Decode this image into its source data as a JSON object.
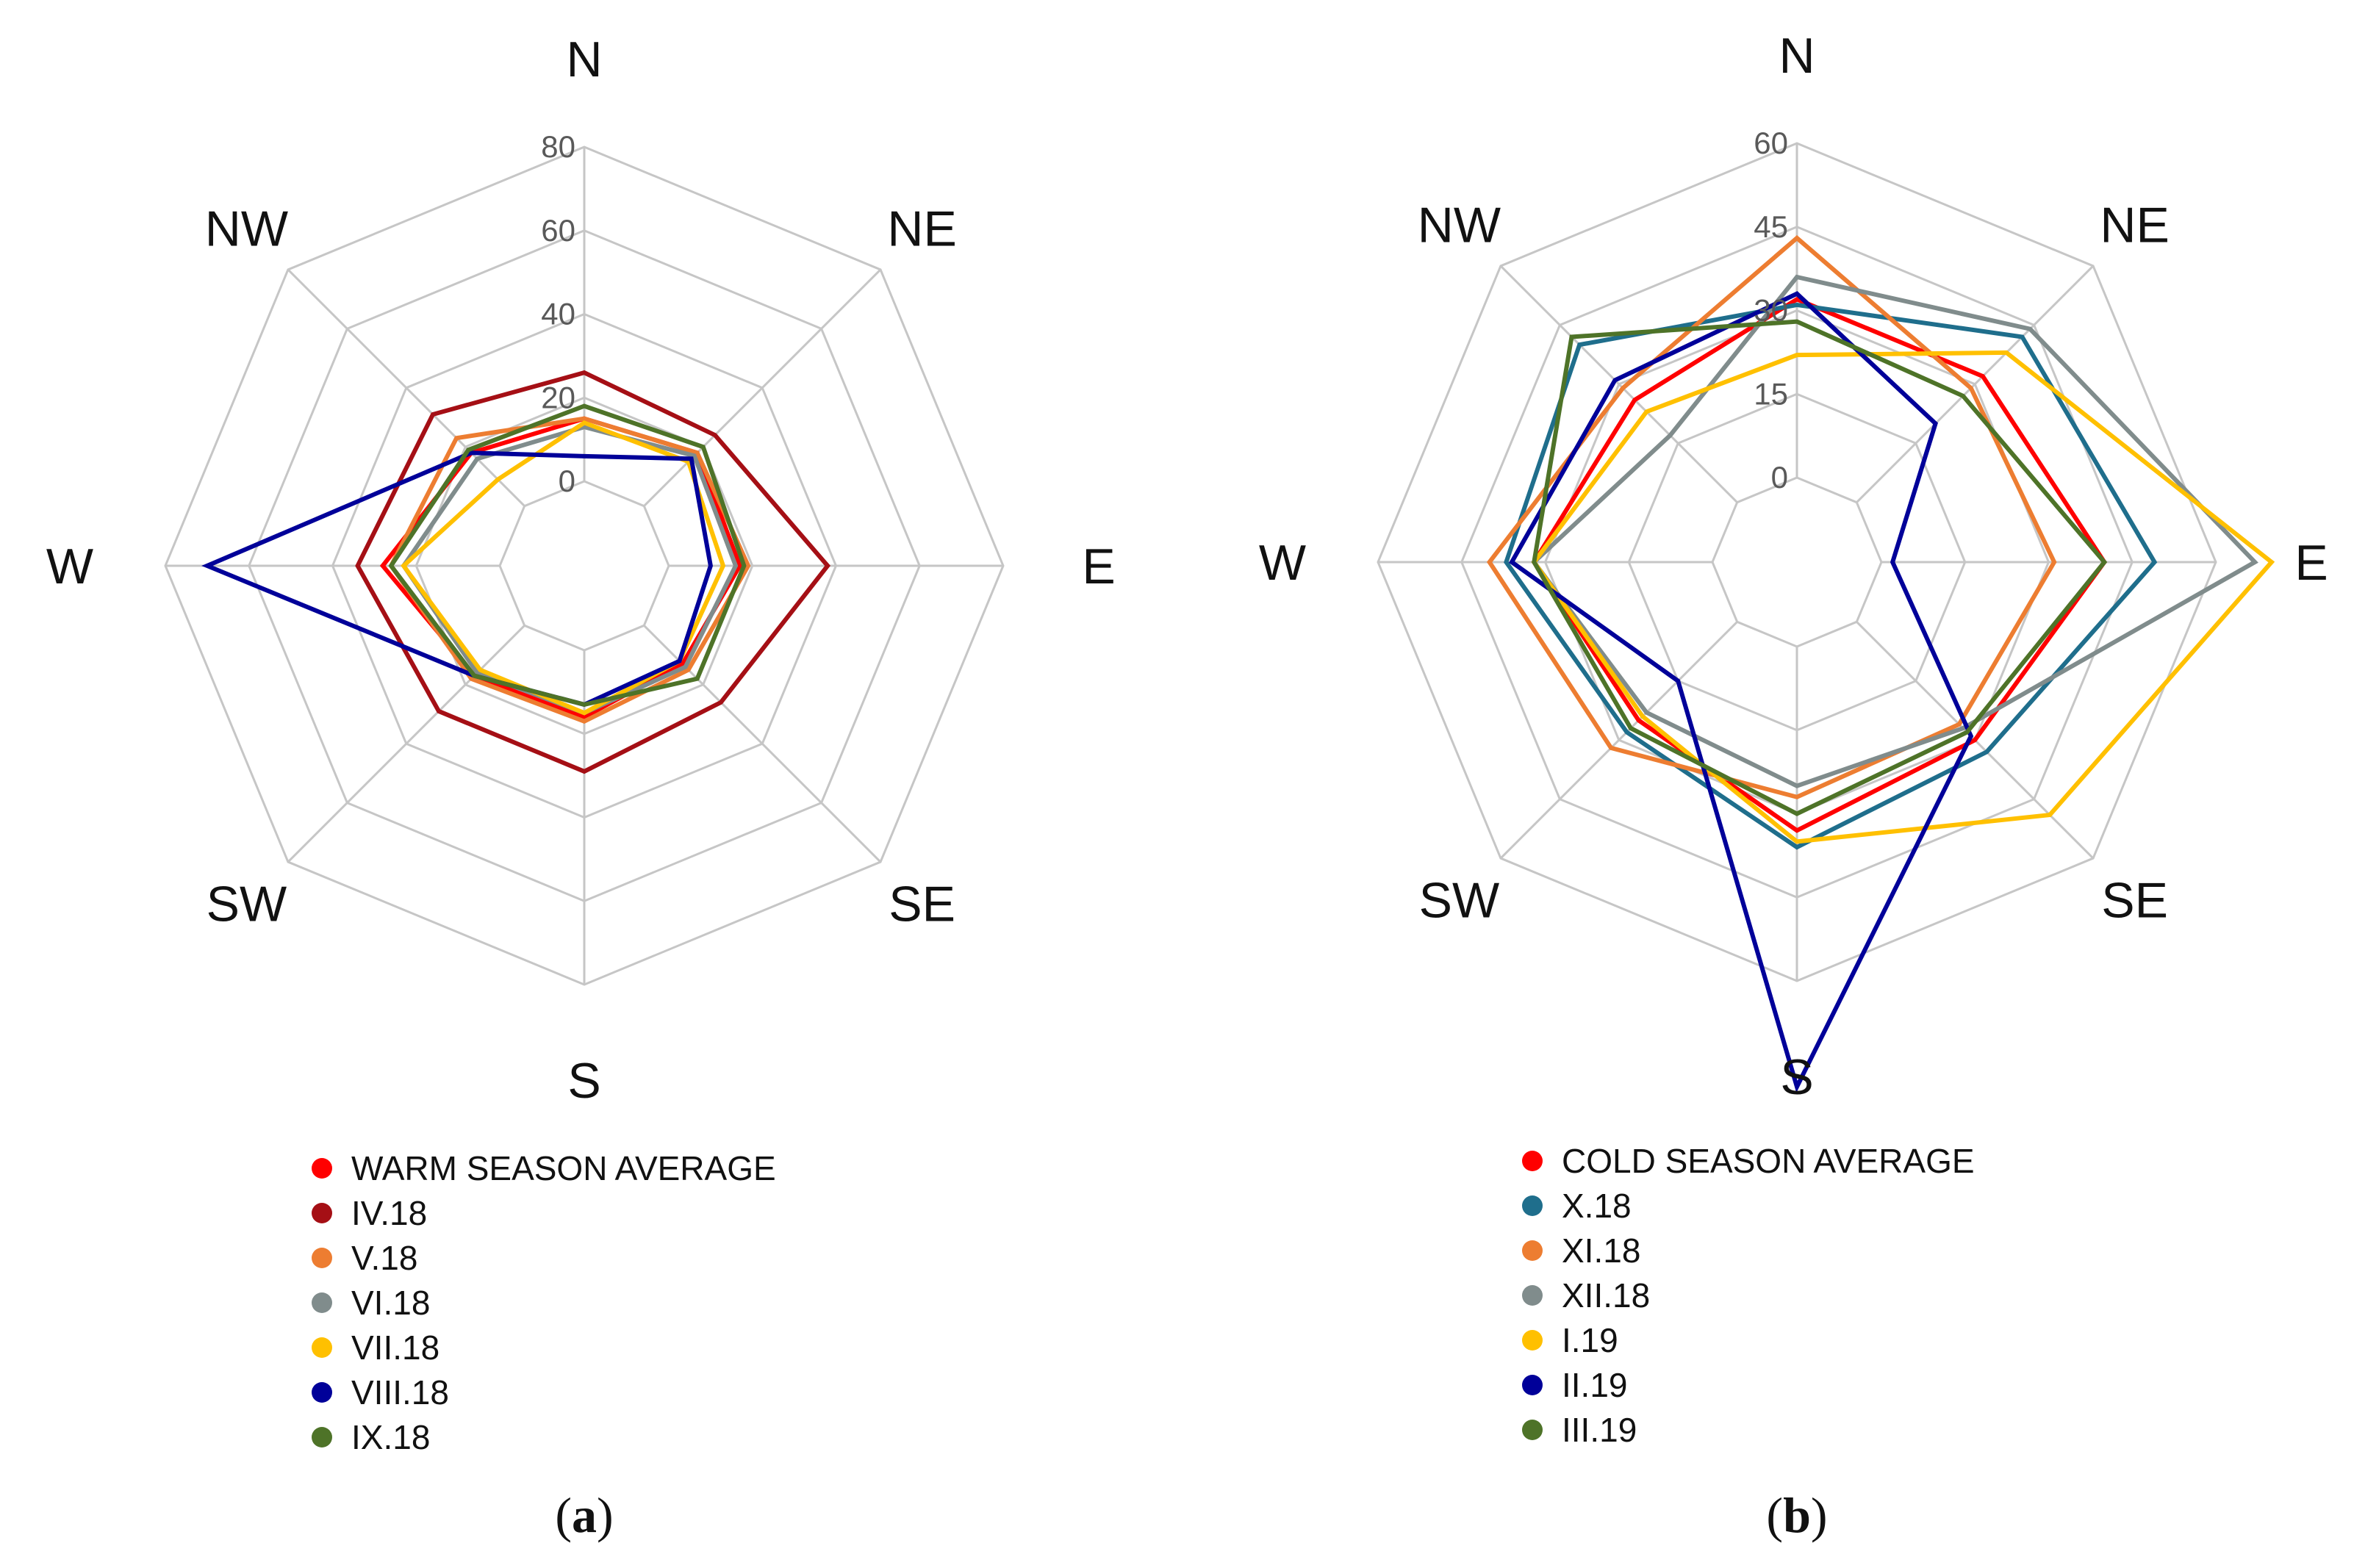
{
  "chart_data": [
    {
      "type": "radar",
      "caption_letter": "a",
      "caption_open": "(",
      "caption_close": ")",
      "directions": [
        "N",
        "NE",
        "E",
        "SE",
        "S",
        "SW",
        "W",
        "NW"
      ],
      "axis_ticks": [
        "0",
        "20",
        "40",
        "60",
        "80"
      ],
      "rlim": [
        0,
        80
      ],
      "legend_position": "bottom",
      "series": [
        {
          "name": "WARM SEASON AVERAGE",
          "color": "#ff0000",
          "values": [
            15,
            18,
            17,
            13,
            16,
            17,
            28,
            18
          ]
        },
        {
          "name": "IV.18",
          "color": "#a50f15",
          "values": [
            26,
            24,
            38,
            26,
            29,
            29,
            34,
            31
          ]
        },
        {
          "name": "V.18",
          "color": "#ed7d31",
          "values": [
            15,
            18,
            19,
            15,
            17,
            18,
            26,
            23
          ]
        },
        {
          "name": "VI.18",
          "color": "#808c8c",
          "values": [
            13,
            17,
            16,
            14,
            15,
            16,
            23,
            16
          ]
        },
        {
          "name": "VII.18",
          "color": "#ffc000",
          "values": [
            14,
            15,
            13,
            12,
            15,
            15,
            23,
            9
          ]
        },
        {
          "name": "VIII.18",
          "color": "#000099",
          "values": [
            6,
            16,
            10,
            12,
            13,
            17,
            70,
            18
          ]
        },
        {
          "name": "IX.18",
          "color": "#4e7328",
          "values": [
            18,
            20,
            18,
            18,
            13,
            17,
            26,
            19
          ]
        }
      ]
    },
    {
      "type": "radar",
      "caption_letter": "b",
      "caption_open": "(",
      "caption_close": ")",
      "directions": [
        "N",
        "NE",
        "E",
        "SE",
        "S",
        "SW",
        "W",
        "NW"
      ],
      "axis_ticks": [
        "0",
        "15",
        "30",
        "45",
        "60"
      ],
      "rlim": [
        0,
        60
      ],
      "legend_position": "bottom",
      "series": [
        {
          "name": "COLD SEASON AVERAGE",
          "color": "#ff0000",
          "values": [
            32,
            32,
            40,
            30,
            33,
            25,
            32,
            26
          ]
        },
        {
          "name": "X.18",
          "color": "#1f6e8c",
          "values": [
            31,
            42,
            49,
            33,
            36,
            28,
            37,
            40
          ]
        },
        {
          "name": "XI.18",
          "color": "#ed7d31",
          "values": [
            43,
            29,
            31,
            26,
            27,
            32,
            40,
            29
          ]
        },
        {
          "name": "XII.18",
          "color": "#808c8c",
          "values": [
            36,
            44,
            67,
            27,
            25,
            23,
            32,
            17
          ]
        },
        {
          "name": "I.19",
          "color": "#ffc000",
          "values": [
            22,
            38,
            70,
            49,
            35,
            24,
            32,
            23
          ]
        },
        {
          "name": "II.19",
          "color": "#000099",
          "values": [
            33,
            20,
            2,
            29,
            79,
            15,
            36,
            31
          ]
        },
        {
          "name": "III.19",
          "color": "#4e7328",
          "values": [
            28,
            27,
            40,
            28,
            30,
            27,
            32,
            42
          ]
        }
      ]
    }
  ]
}
